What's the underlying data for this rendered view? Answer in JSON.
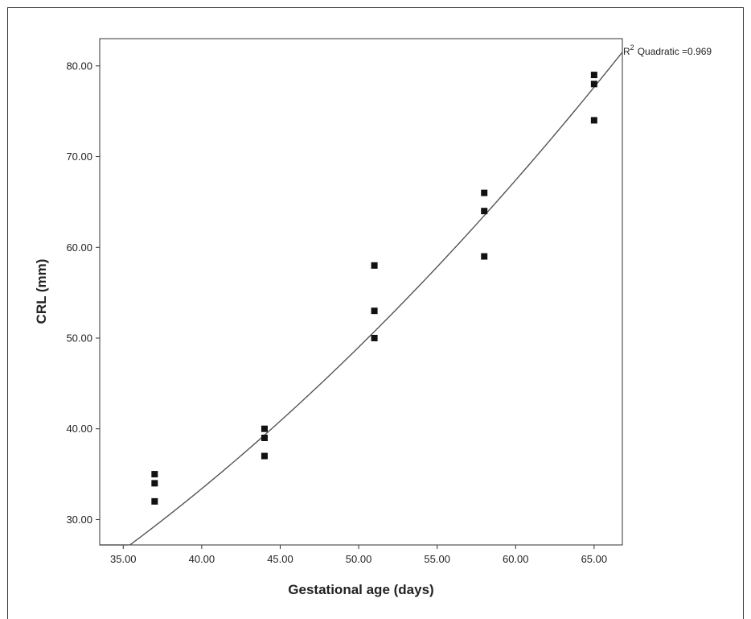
{
  "chart_data": {
    "type": "scatter",
    "title": "",
    "xlabel": "Gestational age (days)",
    "ylabel": "CRL (mm)",
    "xlim": [
      33.5,
      66.8
    ],
    "ylim": [
      27.2,
      83.0
    ],
    "xticks": [
      35,
      40,
      45,
      50,
      55,
      60,
      65
    ],
    "xtick_labels": [
      "35.00",
      "40.00",
      "45.00",
      "50.00",
      "55.00",
      "60.00",
      "65.00"
    ],
    "yticks": [
      30,
      40,
      50,
      60,
      70,
      80
    ],
    "ytick_labels": [
      "30.00",
      "40.00",
      "50.00",
      "60.00",
      "70.00",
      "80.00"
    ],
    "points": [
      {
        "x": 37,
        "y": 35
      },
      {
        "x": 37,
        "y": 34
      },
      {
        "x": 37,
        "y": 32
      },
      {
        "x": 44,
        "y": 40
      },
      {
        "x": 44,
        "y": 39
      },
      {
        "x": 44,
        "y": 37
      },
      {
        "x": 51,
        "y": 58
      },
      {
        "x": 51,
        "y": 53
      },
      {
        "x": 51,
        "y": 50
      },
      {
        "x": 58,
        "y": 66
      },
      {
        "x": 58,
        "y": 64
      },
      {
        "x": 58,
        "y": 59
      },
      {
        "x": 65,
        "y": 79
      },
      {
        "x": 65,
        "y": 78
      },
      {
        "x": 65,
        "y": 74
      }
    ],
    "fit": {
      "type": "quadratic",
      "r2_label": "Quadratic =0.969",
      "r2_prefix": "R",
      "r2_superscript": "2",
      "coefficients": {
        "a": 0.014,
        "b": 0.3,
        "c": -1.0
      }
    },
    "grid": false,
    "legend": "none"
  }
}
